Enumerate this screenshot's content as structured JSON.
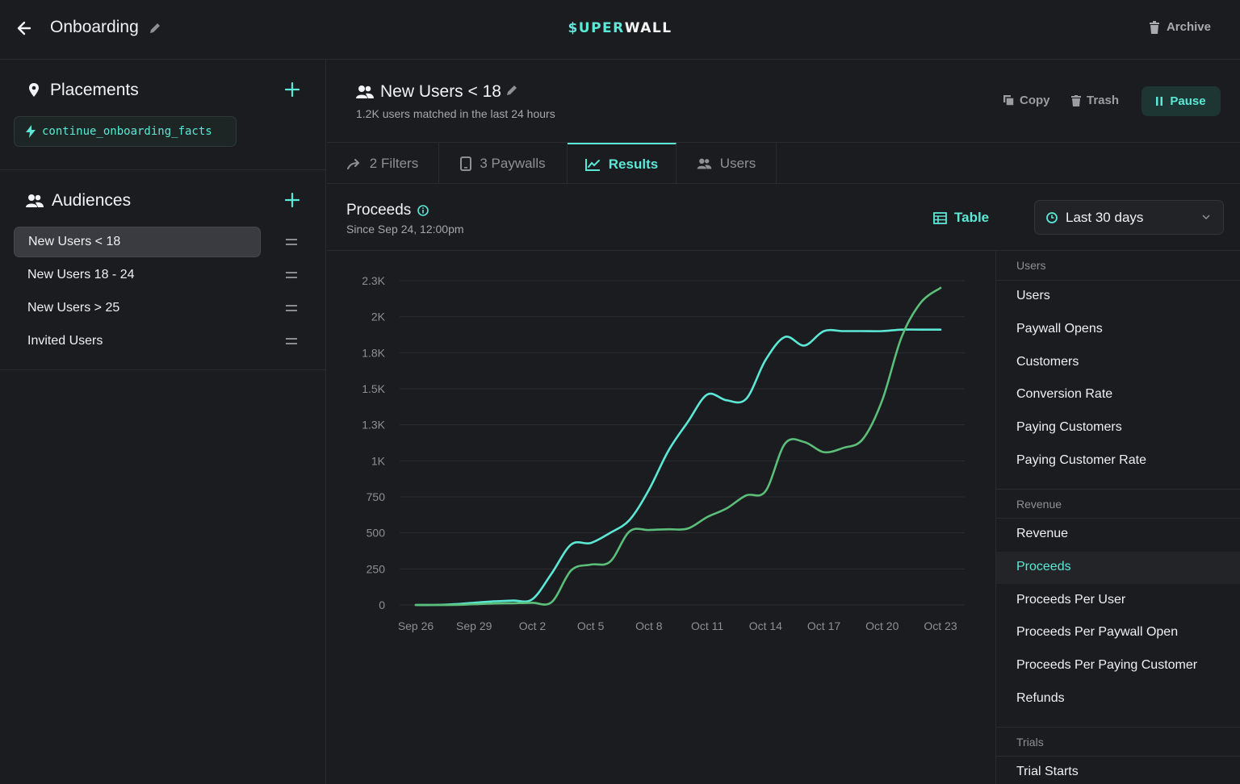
{
  "header": {
    "title": "Onboarding",
    "logo_part1": "$UPER",
    "logo_part2": "WALL",
    "archive_label": "Archive"
  },
  "sidebar": {
    "placements_label": "Placements",
    "placement_chip": "continue_onboarding_facts",
    "audiences_label": "Audiences",
    "audiences": [
      {
        "label": "New Users < 18",
        "active": true
      },
      {
        "label": "New Users 18 - 24",
        "active": false
      },
      {
        "label": "New Users > 25",
        "active": false
      },
      {
        "label": "Invited Users",
        "active": false
      }
    ]
  },
  "audience": {
    "title": "New Users < 18",
    "subtitle": "1.2K users matched in the last 24 hours",
    "copy_label": "Copy",
    "trash_label": "Trash",
    "pause_label": "Pause"
  },
  "tabs": [
    {
      "label": "2 Filters",
      "icon": "filter-icon",
      "active": false
    },
    {
      "label": "3 Paywalls",
      "icon": "phone-icon",
      "active": false
    },
    {
      "label": "Results",
      "icon": "chart-icon",
      "active": true
    },
    {
      "label": "Users",
      "icon": "users-icon",
      "active": false
    }
  ],
  "results": {
    "metric_title": "Proceeds",
    "since": "Since Sep 24, 12:00pm",
    "table_label": "Table",
    "range_label": "Last 30 days"
  },
  "colors": {
    "accent": "#5ce8d6",
    "series_green": "#5bbf7a"
  },
  "chart_data": {
    "type": "line",
    "title": "Proceeds",
    "x_tick_labels": [
      "Sep 26",
      "Sep 29",
      "Oct 2",
      "Oct 5",
      "Oct 8",
      "Oct 11",
      "Oct 14",
      "Oct 17",
      "Oct 20",
      "Oct 23"
    ],
    "y_tick_labels": [
      "0",
      "250",
      "500",
      "750",
      "1K",
      "1.3K",
      "1.5K",
      "1.8K",
      "2K",
      "2.3K"
    ],
    "ylim": [
      0,
      2250
    ],
    "grid": true,
    "x": [
      0,
      1,
      2,
      3,
      4,
      5,
      6,
      7,
      8,
      9,
      10,
      11,
      12,
      13,
      14,
      15,
      16,
      17,
      18,
      19,
      20,
      21,
      22,
      23,
      24,
      25,
      26,
      27
    ],
    "series": [
      {
        "color": "#5ce8d6",
        "values": [
          0,
          0,
          5,
          15,
          25,
          30,
          40,
          220,
          420,
          430,
          500,
          590,
          800,
          1070,
          1270,
          1460,
          1420,
          1430,
          1700,
          1860,
          1800,
          1900,
          1900,
          1900,
          1900,
          1910,
          1910,
          1910
        ]
      },
      {
        "color": "#5bbf7a",
        "values": [
          0,
          0,
          0,
          5,
          10,
          12,
          15,
          20,
          240,
          280,
          300,
          510,
          520,
          525,
          530,
          610,
          670,
          760,
          790,
          1120,
          1130,
          1060,
          1090,
          1150,
          1420,
          1860,
          2100,
          2200
        ]
      }
    ]
  },
  "metrics": {
    "groups": [
      {
        "label": "Users",
        "items": [
          "Users",
          "Paywall Opens",
          "Customers",
          "Conversion Rate",
          "Paying Customers",
          "Paying Customer Rate"
        ]
      },
      {
        "label": "Revenue",
        "items": [
          "Revenue",
          "Proceeds",
          "Proceeds Per User",
          "Proceeds Per Paywall Open",
          "Proceeds Per Paying Customer",
          "Refunds"
        ]
      },
      {
        "label": "Trials",
        "items": [
          "Trial Starts"
        ]
      }
    ],
    "active": "Proceeds"
  }
}
